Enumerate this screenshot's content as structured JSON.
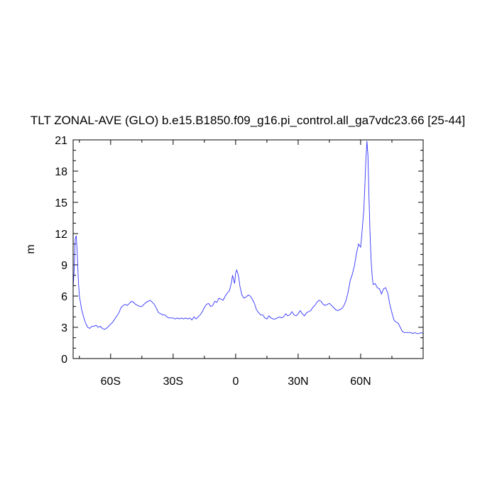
{
  "chart_data": {
    "type": "line",
    "title": "TLT ZONAL-AVE (GLO) b.e15.B1850.f09_g16.pi_control.all_ga7vdc23.66 [25-44]",
    "xlabel": "",
    "ylabel": "m",
    "xlim": [
      -78,
      90
    ],
    "ylim": [
      0,
      21
    ],
    "x_ticks": [
      {
        "value": -60,
        "label": "60S"
      },
      {
        "value": -30,
        "label": "30S"
      },
      {
        "value": 0,
        "label": "0"
      },
      {
        "value": 30,
        "label": "30N"
      },
      {
        "value": 60,
        "label": "60N"
      }
    ],
    "y_ticks": [
      {
        "value": 0,
        "label": "0"
      },
      {
        "value": 3,
        "label": "3"
      },
      {
        "value": 6,
        "label": "6"
      },
      {
        "value": 9,
        "label": "9"
      },
      {
        "value": 12,
        "label": "12"
      },
      {
        "value": 15,
        "label": "15"
      },
      {
        "value": 18,
        "label": "18"
      },
      {
        "value": 21,
        "label": "21"
      }
    ],
    "grid": false,
    "line_color": "#3333ff",
    "series": [
      {
        "x": [
          -78,
          -77.5,
          -77,
          -76.5,
          -76,
          -75.5,
          -75,
          -74,
          -73,
          -72,
          -71,
          -70,
          -69,
          -68,
          -67,
          -66,
          -65,
          -64,
          -63,
          -62,
          -61,
          -60,
          -59,
          -58,
          -57,
          -56,
          -55,
          -54,
          -53,
          -52,
          -51,
          -50,
          -49,
          -48,
          -47,
          -46,
          -45,
          -44,
          -43,
          -42,
          -41,
          -40,
          -39,
          -38,
          -37,
          -36,
          -35,
          -34,
          -33,
          -32,
          -31,
          -30,
          -29,
          -28,
          -27,
          -26,
          -25,
          -24,
          -23,
          -22,
          -21,
          -20,
          -19,
          -18,
          -17,
          -16,
          -15,
          -14,
          -13,
          -12,
          -11,
          -10,
          -9,
          -8,
          -7,
          -6,
          -5,
          -4,
          -3,
          -2,
          -1.5,
          -1,
          -0.5,
          0,
          0.5,
          1,
          1.5,
          2,
          3,
          4,
          5,
          6,
          7,
          8,
          9,
          10,
          11,
          12,
          13,
          14,
          15,
          16,
          17,
          18,
          19,
          20,
          21,
          22,
          23,
          24,
          25,
          26,
          27,
          28,
          29,
          30,
          31,
          32,
          33,
          34,
          35,
          36,
          37,
          38,
          39,
          40,
          41,
          42,
          43,
          44,
          45,
          46,
          47,
          48,
          49,
          50,
          51,
          52,
          53,
          54,
          55,
          56,
          57,
          58,
          59,
          60,
          60.5,
          61,
          61.5,
          62,
          62.5,
          63,
          63.5,
          64,
          64.5,
          65,
          65.5,
          66,
          67,
          68,
          69,
          70,
          71,
          72,
          73,
          74,
          75,
          76,
          77,
          78,
          79,
          80,
          81,
          82,
          83,
          84,
          85,
          86,
          87,
          88,
          89,
          90
        ],
        "y": [
          6.8,
          8.5,
          11.5,
          11.8,
          10.0,
          7.5,
          6.0,
          4.8,
          4.0,
          3.4,
          3.0,
          2.9,
          3.1,
          3.1,
          3.2,
          3.0,
          3.1,
          2.9,
          2.8,
          2.9,
          3.1,
          3.3,
          3.5,
          3.8,
          4.1,
          4.4,
          4.9,
          5.1,
          5.2,
          5.1,
          5.3,
          5.5,
          5.4,
          5.2,
          5.1,
          5.0,
          5.0,
          5.2,
          5.4,
          5.5,
          5.6,
          5.4,
          5.2,
          4.8,
          4.4,
          4.3,
          4.2,
          4.2,
          4.0,
          3.9,
          3.9,
          3.9,
          3.8,
          3.9,
          3.8,
          3.9,
          3.8,
          3.9,
          3.8,
          3.9,
          3.7,
          4.0,
          3.8,
          4.0,
          4.2,
          4.5,
          4.9,
          5.2,
          5.3,
          5.0,
          5.1,
          5.5,
          5.4,
          5.8,
          5.7,
          5.6,
          6.0,
          6.3,
          6.5,
          7.3,
          8.0,
          7.6,
          7.2,
          8.2,
          8.5,
          8.2,
          7.8,
          7.0,
          6.1,
          5.8,
          5.9,
          6.1,
          6.0,
          5.7,
          5.3,
          4.7,
          4.4,
          4.2,
          4.2,
          3.9,
          3.8,
          4.1,
          3.9,
          3.8,
          3.8,
          3.9,
          4.0,
          3.9,
          4.0,
          4.3,
          4.1,
          4.2,
          4.5,
          4.2,
          4.1,
          4.3,
          4.6,
          4.3,
          4.1,
          4.4,
          4.5,
          4.6,
          4.9,
          5.1,
          5.4,
          5.6,
          5.5,
          5.2,
          5.1,
          5.2,
          5.3,
          5.1,
          4.9,
          4.7,
          4.6,
          4.7,
          4.8,
          5.1,
          5.6,
          6.4,
          7.5,
          8.1,
          8.9,
          10.1,
          11.0,
          10.7,
          11.8,
          13.0,
          14.2,
          16.5,
          19.0,
          20.9,
          19.5,
          15.5,
          12.0,
          9.5,
          8.0,
          7.1,
          7.2,
          6.8,
          6.7,
          6.2,
          6.7,
          6.8,
          6.3,
          5.2,
          4.4,
          3.7,
          3.5,
          3.4,
          3.0,
          2.6,
          2.5,
          2.5,
          2.5,
          2.5,
          2.4,
          2.5,
          2.4,
          2.4,
          2.5,
          2.4
        ]
      }
    ]
  }
}
